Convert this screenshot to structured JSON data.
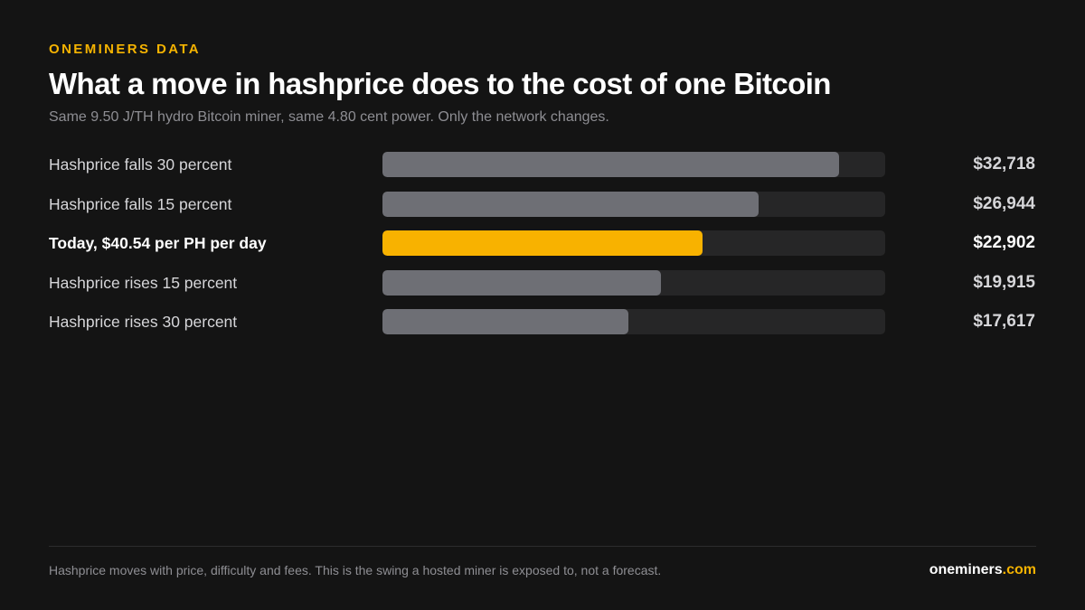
{
  "header": {
    "eyebrow": "ONEMINERS DATA",
    "title": "What a move in hashprice does to the cost of one Bitcoin",
    "subtitle": "Same 9.50 J/TH hydro Bitcoin miner, same 4.80 cent power. Only the network changes."
  },
  "chart_data": {
    "type": "bar",
    "orientation": "horizontal",
    "title": "",
    "xlabel": "",
    "ylabel": "",
    "categories": [
      "Hashprice falls 30 percent",
      "Hashprice falls 15 percent",
      "Today, $40.54 per PH per day",
      "Hashprice rises 15 percent",
      "Hashprice rises 30 percent"
    ],
    "values": [
      32718,
      26944,
      22902,
      19915,
      17617
    ],
    "value_labels": [
      "$32,718",
      "$26,944",
      "$22,902",
      "$19,915",
      "$17,617"
    ],
    "highlight_index": 2,
    "xlim": [
      0,
      36000
    ],
    "grid": false,
    "legend": "none",
    "colors": {
      "bar": "#6e6f75",
      "highlight": "#f8b200",
      "track": "#262627"
    }
  },
  "footer": {
    "note": "Hashprice moves with price, difficulty and fees. This is the swing a hosted miner is exposed to, not a forecast.",
    "brand_name": "oneminers",
    "brand_tld": ".com"
  },
  "colors": {
    "background": "#141414",
    "accent": "#f5b301"
  }
}
